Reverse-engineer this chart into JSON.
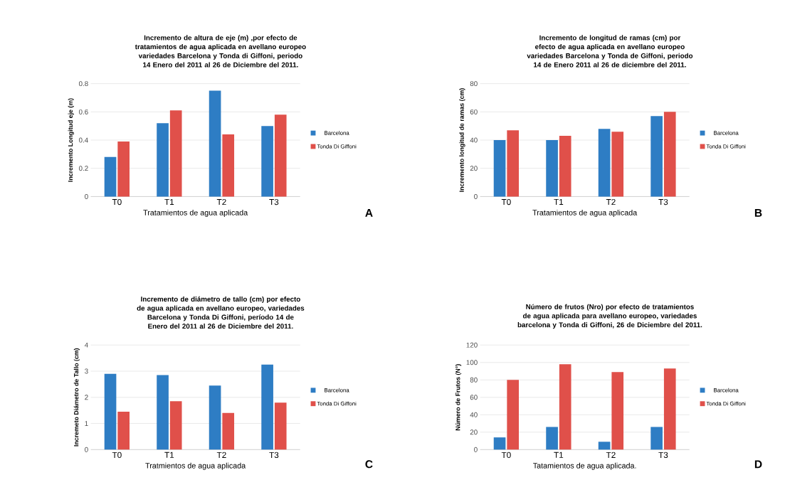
{
  "chart_data": [
    {
      "type": "bar",
      "title": "Incremento de altura de eje (m) ,por efecto de tratamientos de agua aplicada en avellano europeo variedades Barcelona y Tonda di Giffoni, periodo 14 Enero del 2011 al 26 de Diciembre del 2011.",
      "xlabel": "Tratamientos de agua aplicada",
      "ylabel": "Incremento Longitud eje (m)",
      "categories": [
        "T0",
        "T1",
        "T2",
        "T3"
      ],
      "series": [
        {
          "name": "Barcelona",
          "color": "#2e7dc4",
          "values": [
            0.28,
            0.52,
            0.75,
            0.5
          ]
        },
        {
          "name": "Tonda Di Giffoni",
          "color": "#e0504a",
          "values": [
            0.39,
            0.61,
            0.44,
            0.58
          ]
        }
      ],
      "ylim": [
        0,
        0.8
      ],
      "yticks": [
        0,
        0.2,
        0.4,
        0.6,
        0.8
      ],
      "grid": "y",
      "legend": "right",
      "annotations": [
        "A"
      ]
    },
    {
      "type": "bar",
      "title": "Incremento de longitud de ramas (cm) por efecto de agua aplicada en avellano europeo variedades Barcelona y Tonda de Giffoni, periodo 14 de Enero 2011 al 26 de diciembre del 2011.",
      "xlabel": "Tratamientos de agua aplicada",
      "ylabel": "Incremento longitud de ramas (cm)",
      "categories": [
        "T0",
        "T1",
        "T2",
        "T3"
      ],
      "series": [
        {
          "name": "Barcelona",
          "color": "#2e7dc4",
          "values": [
            40,
            40,
            48,
            57
          ]
        },
        {
          "name": "Tonda Di Giffoni",
          "color": "#e0504a",
          "values": [
            47,
            43,
            46,
            60
          ]
        }
      ],
      "ylim": [
        0,
        80
      ],
      "yticks": [
        0,
        20,
        40,
        60,
        80
      ],
      "grid": "y",
      "legend": "right",
      "annotations": [
        "B"
      ]
    },
    {
      "type": "bar",
      "title": "Incremento de diámetro de tallo (cm) por efecto de agua aplicada en avellano europeo, variedades Barcelona y Tonda Di Giffoni, período 14 de Enero del 2011 al 26 de Diciembre del 2011.",
      "xlabel": "Tratmientos de agua aplicada",
      "ylabel": "Incremeto Diámetro de Tallo (cm)",
      "categories": [
        "T0",
        "T1",
        "T2",
        "T3"
      ],
      "series": [
        {
          "name": "Barcelona",
          "color": "#2e7dc4",
          "values": [
            2.9,
            2.85,
            2.45,
            3.25
          ]
        },
        {
          "name": "Tonda Di Giffoni",
          "color": "#e0504a",
          "values": [
            1.45,
            1.85,
            1.4,
            1.8
          ]
        }
      ],
      "ylim": [
        0,
        4
      ],
      "yticks": [
        0,
        1,
        2,
        3,
        4
      ],
      "grid": "y",
      "legend": "right",
      "annotations": [
        "C"
      ]
    },
    {
      "type": "bar",
      "title": "Número de frutos (Nro) por efecto de tratamientos de agua aplicada para avellano europeo, variedades barcelona y Tonda di Giffoni, 26 de Diciembre del 2011.",
      "xlabel": "Tatamientos de agua aplicada.",
      "ylabel": "Número de Frutos (N°)",
      "categories": [
        "T0",
        "T1",
        "T2",
        "T3"
      ],
      "series": [
        {
          "name": "Barcelona",
          "color": "#2e7dc4",
          "values": [
            14,
            26,
            9,
            26
          ]
        },
        {
          "name": "Tonda Di Giffoni",
          "color": "#e0504a",
          "values": [
            80,
            98,
            89,
            93
          ]
        }
      ],
      "ylim": [
        0,
        120
      ],
      "yticks": [
        0,
        20,
        40,
        60,
        80,
        100,
        120
      ],
      "grid": "y",
      "legend": "right",
      "annotations": [
        "D"
      ]
    }
  ]
}
